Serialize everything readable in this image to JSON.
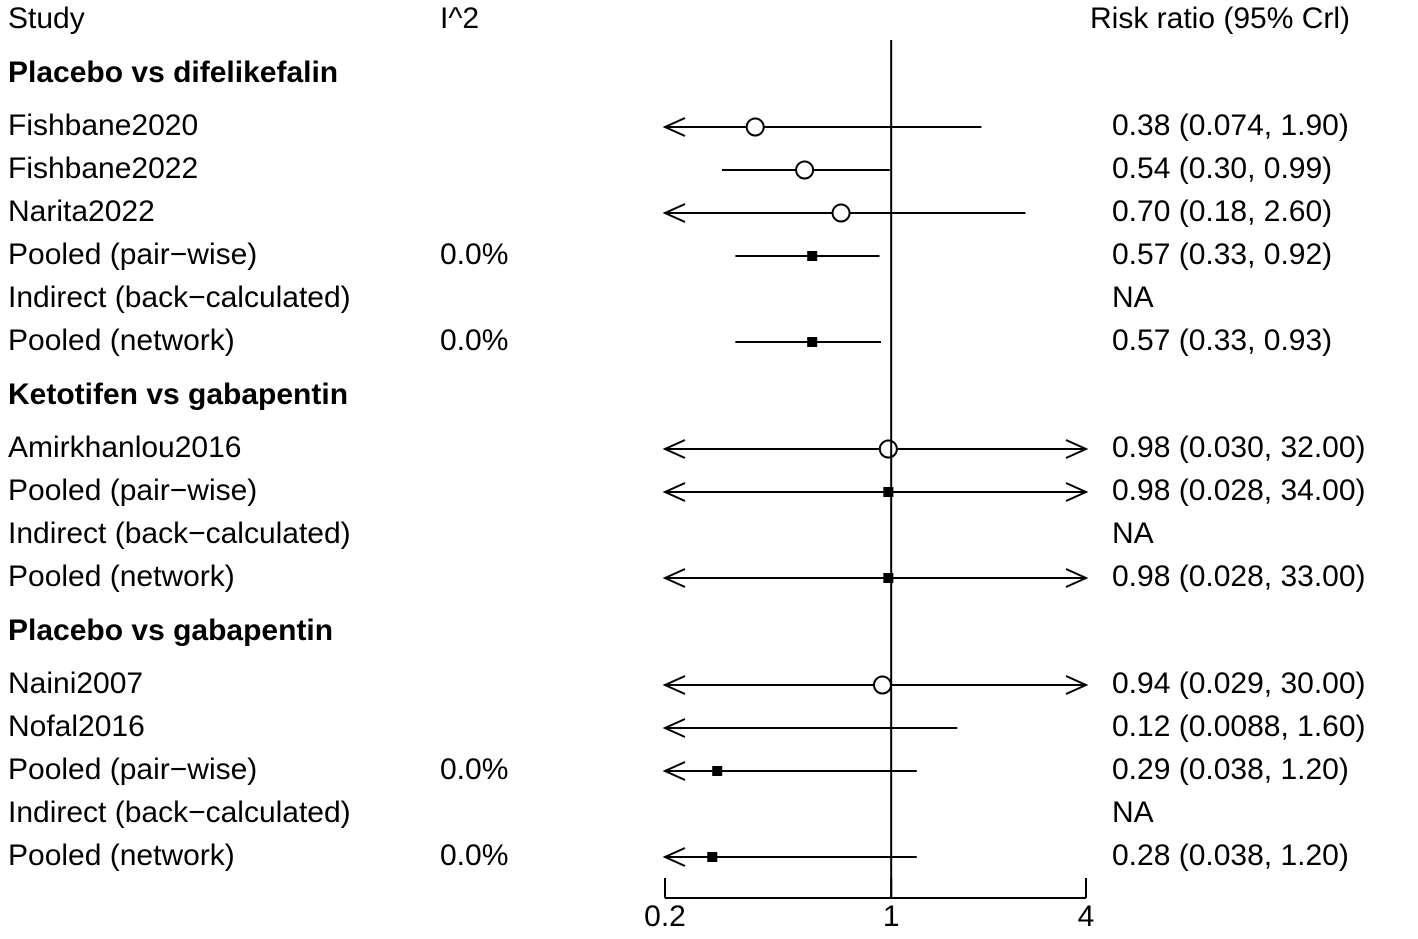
{
  "chart_data": {
    "type": "forest",
    "headers": {
      "study": "Study",
      "i2": "I^2",
      "effect": "Risk ratio (95% Crl)"
    },
    "xlim": [
      0.2,
      4
    ],
    "xticks": [
      0.2,
      1,
      4
    ],
    "log_scale": true,
    "color": "#000000",
    "groups": [
      {
        "title": "Placebo vs difelikefalin",
        "rows": [
          {
            "study": "Fishbane2020",
            "estimate": 0.38,
            "lower": 0.074,
            "upper": 1.9,
            "marker": "circle",
            "label": "0.38 (0.074, 1.90)"
          },
          {
            "study": "Fishbane2022",
            "estimate": 0.54,
            "lower": 0.3,
            "upper": 0.99,
            "marker": "circle",
            "label": "0.54 (0.30, 0.99)"
          },
          {
            "study": "Narita2022",
            "estimate": 0.7,
            "lower": 0.18,
            "upper": 2.6,
            "marker": "circle",
            "label": "0.70 (0.18, 2.60)"
          },
          {
            "study": "Pooled (pair−wise)",
            "i2": "0.0%",
            "estimate": 0.57,
            "lower": 0.33,
            "upper": 0.92,
            "marker": "square",
            "label": "0.57 (0.33, 0.92)"
          },
          {
            "study": "Indirect (back−calculated)",
            "label": "NA"
          },
          {
            "study": "Pooled (network)",
            "i2": "0.0%",
            "estimate": 0.57,
            "lower": 0.33,
            "upper": 0.93,
            "marker": "square",
            "label": "0.57 (0.33, 0.93)"
          }
        ]
      },
      {
        "title": "Ketotifen vs gabapentin",
        "rows": [
          {
            "study": "Amirkhanlou2016",
            "estimate": 0.98,
            "lower": 0.03,
            "upper": 32.0,
            "marker": "circle",
            "label": "0.98 (0.030, 32.00)"
          },
          {
            "study": "Pooled (pair−wise)",
            "estimate": 0.98,
            "lower": 0.028,
            "upper": 34.0,
            "marker": "square",
            "label": "0.98 (0.028, 34.00)"
          },
          {
            "study": "Indirect (back−calculated)",
            "label": "NA"
          },
          {
            "study": "Pooled (network)",
            "estimate": 0.98,
            "lower": 0.028,
            "upper": 33.0,
            "marker": "square",
            "label": "0.98 (0.028, 33.00)"
          }
        ]
      },
      {
        "title": "Placebo vs gabapentin",
        "rows": [
          {
            "study": "Naini2007",
            "estimate": 0.94,
            "lower": 0.029,
            "upper": 30.0,
            "marker": "circle",
            "label": "0.94 (0.029, 30.00)"
          },
          {
            "study": "Nofal2016",
            "estimate": 0.12,
            "lower": 0.0088,
            "upper": 1.6,
            "marker": "circle",
            "label": "0.12 (0.0088, 1.60)"
          },
          {
            "study": "Pooled (pair−wise)",
            "i2": "0.0%",
            "estimate": 0.29,
            "lower": 0.038,
            "upper": 1.2,
            "marker": "square",
            "label": "0.29 (0.038, 1.20)"
          },
          {
            "study": "Indirect (back−calculated)",
            "label": "NA"
          },
          {
            "study": "Pooled (network)",
            "i2": "0.0%",
            "estimate": 0.28,
            "lower": 0.038,
            "upper": 1.2,
            "marker": "square",
            "label": "0.28 (0.038, 1.20)"
          }
        ]
      }
    ]
  }
}
